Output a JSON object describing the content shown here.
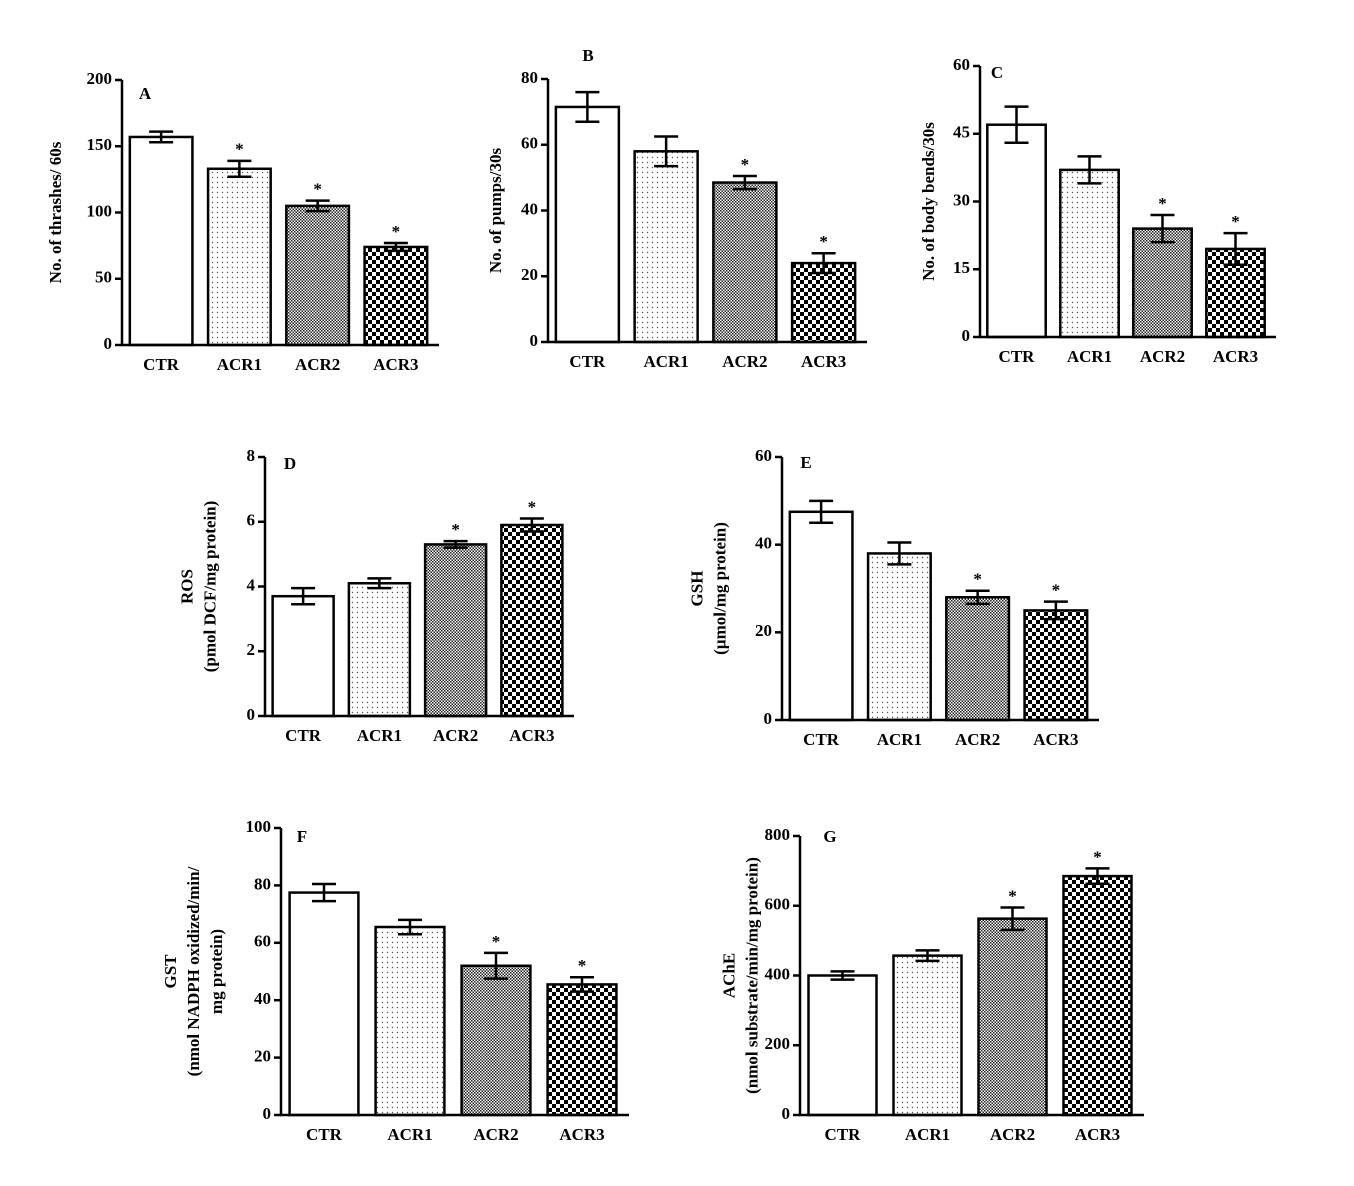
{
  "chart_data": [
    {
      "type": "bar",
      "panel": "A",
      "ylabel": [
        "No. of thrashes/ 60s"
      ],
      "categories": [
        "CTR",
        "ACR1",
        "ACR2",
        "ACR3"
      ],
      "values": [
        157,
        133,
        105,
        74
      ],
      "errors": [
        4,
        6,
        4,
        3
      ],
      "markers": [
        null,
        "*",
        "*",
        "*"
      ],
      "ylim": [
        0,
        200
      ],
      "yticks": [
        0,
        50,
        100,
        150,
        200
      ]
    },
    {
      "type": "bar",
      "panel": "B",
      "ylabel": [
        "No. of pumps/30s"
      ],
      "categories": [
        "CTR",
        "ACR1",
        "ACR2",
        "ACR3"
      ],
      "values": [
        71.5,
        58,
        48.5,
        24
      ],
      "errors": [
        4.5,
        4.5,
        2,
        3
      ],
      "markers": [
        null,
        null,
        "*",
        "*"
      ],
      "ylim": [
        0,
        80
      ],
      "yticks": [
        0,
        20,
        40,
        60,
        80
      ]
    },
    {
      "type": "bar",
      "panel": "C",
      "ylabel": [
        "No. of body bends/30s"
      ],
      "categories": [
        "CTR",
        "ACR1",
        "ACR2",
        "ACR3"
      ],
      "values": [
        47,
        37,
        24,
        19.5
      ],
      "errors": [
        4,
        3,
        3,
        3.5
      ],
      "markers": [
        null,
        null,
        "*",
        "*"
      ],
      "ylim": [
        0,
        60
      ],
      "yticks": [
        0,
        15,
        30,
        45,
        60
      ]
    },
    {
      "type": "bar",
      "panel": "D",
      "ylabel": [
        "ROS",
        "(pmol DCF/mg protein)"
      ],
      "categories": [
        "CTR",
        "ACR1",
        "ACR2",
        "ACR3"
      ],
      "values": [
        3.7,
        4.1,
        5.3,
        5.9
      ],
      "errors": [
        0.25,
        0.15,
        0.1,
        0.2
      ],
      "markers": [
        null,
        null,
        "*",
        "*"
      ],
      "ylim": [
        0,
        8
      ],
      "yticks": [
        0,
        2,
        4,
        6,
        8
      ]
    },
    {
      "type": "bar",
      "panel": "E",
      "ylabel": [
        "GSH",
        "(µmol/mg protein)"
      ],
      "categories": [
        "CTR",
        "ACR1",
        "ACR2",
        "ACR3"
      ],
      "values": [
        47.5,
        38,
        28,
        25
      ],
      "errors": [
        2.5,
        2.5,
        1.5,
        2
      ],
      "markers": [
        null,
        null,
        "*",
        "*"
      ],
      "ylim": [
        0,
        60
      ],
      "yticks": [
        0,
        20,
        40,
        60
      ]
    },
    {
      "type": "bar",
      "panel": "F",
      "ylabel": [
        "GST",
        "(nmol NADPH oxidized/min/",
        "mg protein)"
      ],
      "categories": [
        "CTR",
        "ACR1",
        "ACR2",
        "ACR3"
      ],
      "values": [
        77.5,
        65.5,
        52,
        45.5
      ],
      "errors": [
        3,
        2.5,
        4.5,
        2.5
      ],
      "markers": [
        null,
        null,
        "*",
        "*"
      ],
      "ylim": [
        0,
        100
      ],
      "yticks": [
        0,
        20,
        40,
        60,
        80,
        100
      ]
    },
    {
      "type": "bar",
      "panel": "G",
      "ylabel": [
        "AChE",
        "(nmol substrate/min/mg protein)"
      ],
      "categories": [
        "CTR",
        "ACR1",
        "ACR2",
        "ACR3"
      ],
      "values": [
        400,
        457,
        563,
        685
      ],
      "errors": [
        12,
        15,
        32,
        22
      ],
      "markers": [
        null,
        null,
        "*",
        "*"
      ],
      "ylim": [
        0,
        800
      ],
      "yticks": [
        0,
        200,
        400,
        600,
        800
      ]
    }
  ]
}
